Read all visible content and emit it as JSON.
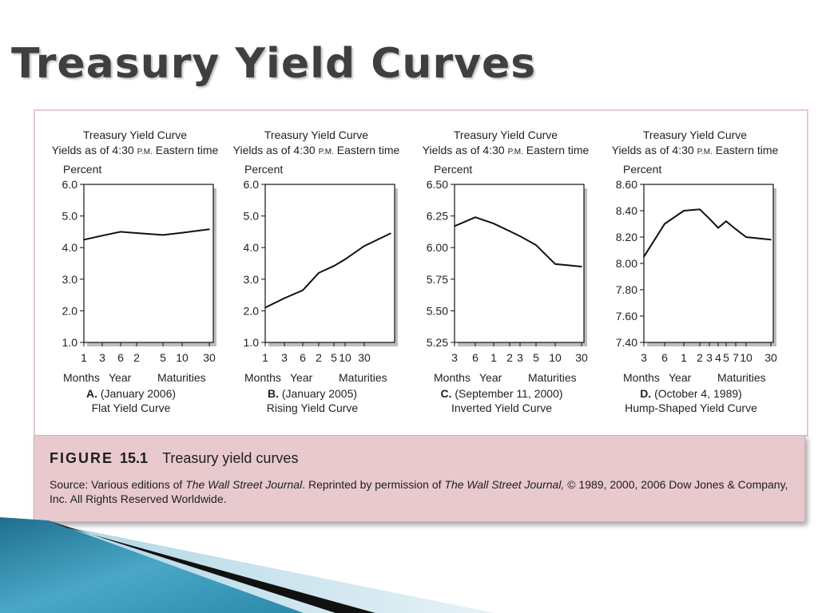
{
  "slide": {
    "title": "Treasury Yield Curves"
  },
  "caption": {
    "label": "FIGURE",
    "number": "15.1",
    "text": "Treasury yield curves",
    "source_pre": "Source: Various editions of ",
    "source_wsj1": "The Wall Street Journal",
    "source_mid": ". Reprinted by permission of ",
    "source_wsj2": "The Wall Street Journal,",
    "source_post": " © 1989, 2000, 2006 Dow Jones & Company, Inc. All Rights Reserved Worldwide."
  },
  "chart_data": [
    {
      "type": "line",
      "title": "Treasury Yield Curve",
      "subtitle_pre": "Yields as of 4:30 ",
      "subtitle_pm": "P.M.",
      "subtitle_post": " Eastern time",
      "ylabel": "Percent",
      "ylim": [
        1.0,
        6.0
      ],
      "yticks": [
        "6.0",
        "5.0",
        "4.0",
        "3.0",
        "2.0",
        "1.0"
      ],
      "xticks": [
        "1",
        "3",
        "6",
        "2",
        "5",
        "10",
        "30"
      ],
      "xaxis_group_labels": [
        "Months",
        "Year",
        "Maturities"
      ],
      "panel_letter": "A.",
      "panel_date": "(January 2006)",
      "panel_name": "Flat Yield Curve",
      "x": [
        "1",
        "3",
        "6",
        "2",
        "5",
        "10",
        "30"
      ],
      "y": [
        4.25,
        4.38,
        4.5,
        4.46,
        4.4,
        4.47,
        4.58
      ]
    },
    {
      "type": "line",
      "title": "Treasury Yield Curve",
      "subtitle_pre": "Yields as of 4:30 ",
      "subtitle_pm": "P.M.",
      "subtitle_post": " Eastern time",
      "ylabel": "Percent",
      "ylim": [
        1.0,
        6.0
      ],
      "yticks": [
        "6.0",
        "5.0",
        "4.0",
        "3.0",
        "2.0",
        "1.0"
      ],
      "xticks": [
        "1",
        "3",
        "6",
        "2",
        "5",
        "10",
        "30"
      ],
      "xaxis_group_labels": [
        "Months",
        "Year",
        "Maturities"
      ],
      "panel_letter": "B.",
      "panel_date": "(January 2005)",
      "panel_name": "Rising Yield Curve",
      "x": [
        "1",
        "3",
        "6",
        "2",
        "3",
        "5",
        "10",
        "30"
      ],
      "y": [
        2.1,
        2.4,
        2.65,
        3.2,
        3.42,
        3.63,
        4.05,
        4.45
      ]
    },
    {
      "type": "line",
      "title": "Treasury Yield Curve",
      "subtitle_pre": "Yields as of 4:30 ",
      "subtitle_pm": "P.M.",
      "subtitle_post": " Eastern time",
      "ylabel": "Percent",
      "ylim": [
        5.25,
        6.5
      ],
      "yticks": [
        "6.50",
        "6.25",
        "6.00",
        "5.75",
        "5.50",
        "5.25"
      ],
      "xticks": [
        "3",
        "6",
        "1",
        "2",
        "3",
        "5",
        "10",
        "30"
      ],
      "xaxis_group_labels": [
        "Months",
        "Year",
        "Maturities"
      ],
      "panel_letter": "C.",
      "panel_date": "(September 11, 2000)",
      "panel_name": "Inverted Yield Curve",
      "x": [
        "3",
        "6",
        "1",
        "2",
        "3",
        "5",
        "10",
        "30"
      ],
      "y": [
        6.17,
        6.24,
        6.19,
        6.13,
        6.09,
        6.02,
        5.87,
        5.85
      ]
    },
    {
      "type": "line",
      "title": "Treasury Yield Curve",
      "subtitle_pre": "Yields as of 4:30 ",
      "subtitle_pm": "P.M.",
      "subtitle_post": " Eastern time",
      "ylabel": "Percent",
      "ylim": [
        7.4,
        8.6
      ],
      "yticks": [
        "8.60",
        "8.40",
        "8.20",
        "8.00",
        "7.80",
        "7.60",
        "7.40"
      ],
      "xticks": [
        "3",
        "6",
        "1",
        "2",
        "3",
        "4",
        "5",
        "7",
        "10",
        "30"
      ],
      "xaxis_group_labels": [
        "Months",
        "Year",
        "Maturities"
      ],
      "panel_letter": "D.",
      "panel_date": "(October 4, 1989)",
      "panel_name": "Hump-Shaped Yield Curve",
      "x": [
        "3",
        "6",
        "1",
        "2",
        "3",
        "4",
        "5",
        "7",
        "10",
        "30"
      ],
      "y": [
        8.05,
        8.3,
        8.4,
        8.41,
        8.34,
        8.27,
        8.32,
        8.26,
        8.2,
        8.18
      ]
    }
  ],
  "colors": {
    "accent_blue": "#2b89a9",
    "caption_bg": "#e7c9ce",
    "frame_border": "#e8c8cf"
  }
}
